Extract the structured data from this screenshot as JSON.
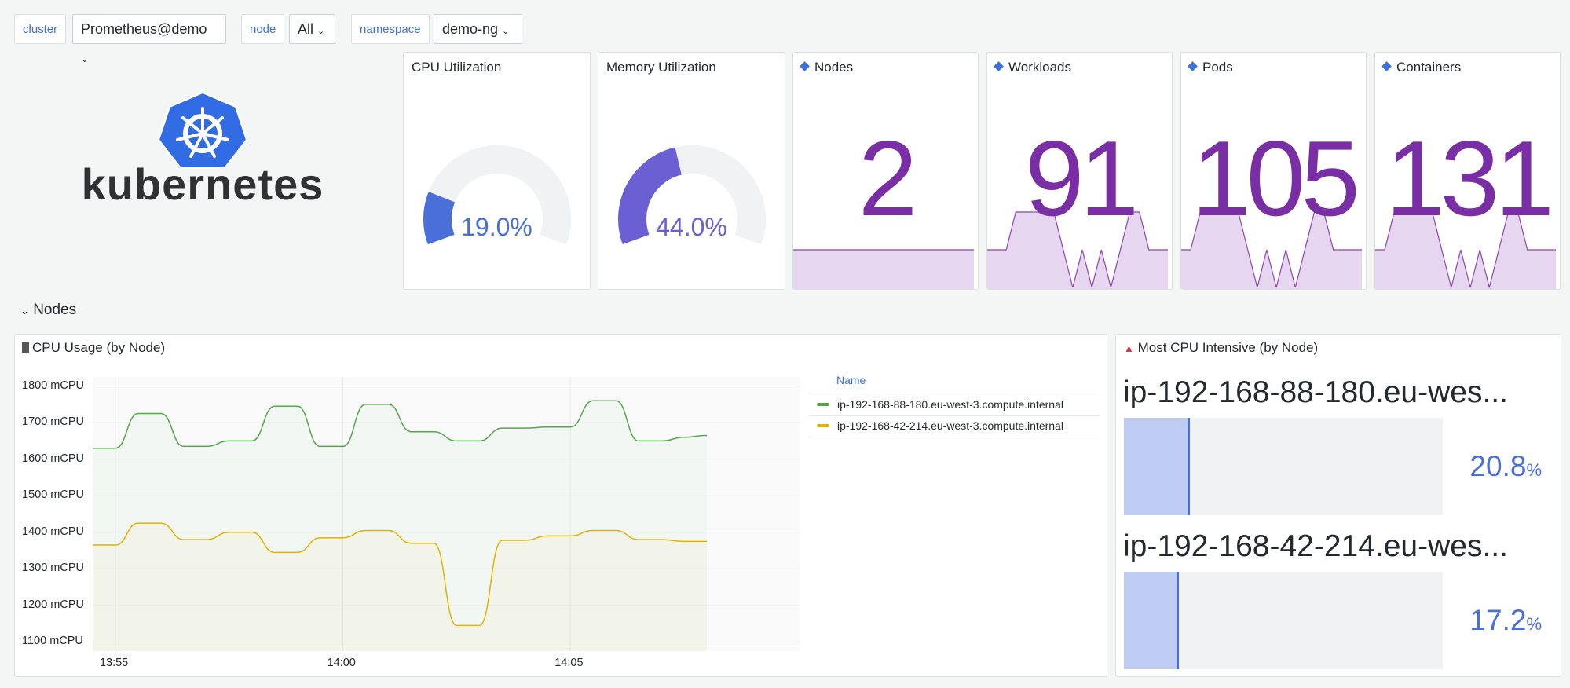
{
  "variables": [
    {
      "label": "cluster",
      "value": "Prometheus@demo"
    },
    {
      "label": "node",
      "value": "All"
    },
    {
      "label": "namespace",
      "value": "demo-ng"
    }
  ],
  "logo": {
    "text": "kubernetes",
    "icon": "kubernetes-helm-wheel"
  },
  "gauges": [
    {
      "title": "CPU Utilization",
      "value": 19.0,
      "display": "19.0%",
      "color": "#4a6fd8"
    },
    {
      "title": "Memory Utilization",
      "value": 44.0,
      "display": "44.0%",
      "color": "#6a5fd3"
    }
  ],
  "stats": [
    {
      "title": "Nodes",
      "value": "2",
      "spark": [
        1,
        1,
        1,
        1,
        1,
        1,
        1,
        1,
        1,
        1,
        1,
        1,
        1,
        1,
        1,
        1,
        1,
        1,
        1,
        1
      ]
    },
    {
      "title": "Workloads",
      "value": "91",
      "spark": [
        1,
        1,
        1,
        3,
        3,
        3,
        3,
        3,
        1,
        0,
        1,
        0,
        1,
        0,
        1,
        3,
        3,
        1,
        1,
        1
      ]
    },
    {
      "title": "Pods",
      "value": "105",
      "spark": [
        1,
        1,
        3,
        3,
        3,
        3,
        3,
        1,
        0,
        1,
        0,
        1,
        0,
        1,
        3,
        3,
        1,
        1,
        1,
        1
      ]
    },
    {
      "title": "Containers",
      "value": "131",
      "spark": [
        1,
        1,
        3,
        3,
        3,
        3,
        3,
        1,
        0,
        1,
        0,
        1,
        0,
        1,
        3,
        3,
        1,
        1,
        1,
        1
      ]
    }
  ],
  "row": {
    "title": "Nodes"
  },
  "cpu_panel": {
    "title": "CPU Usage (by Node)",
    "legend_header": "Name"
  },
  "top_panel": {
    "title": "Most CPU Intensive (by Node)",
    "bars": [
      {
        "name": "ip-192-168-88-180.eu-wes...",
        "value": 20.8,
        "display": "20.8",
        "unit": "%"
      },
      {
        "name": "ip-192-168-42-214.eu-wes...",
        "value": 17.2,
        "display": "17.2",
        "unit": "%"
      }
    ]
  },
  "chart_data": {
    "type": "line",
    "title": "CPU Usage (by Node)",
    "xlabel": "",
    "ylabel": "",
    "ylim": [
      1075,
      1825
    ],
    "ytick_values": [
      1800,
      1700,
      1600,
      1500,
      1400,
      1300,
      1200,
      1100
    ],
    "yticks": [
      "1800 mCPU",
      "1700 mCPU",
      "1600 mCPU",
      "1500 mCPU",
      "1400 mCPU",
      "1300 mCPU",
      "1200 mCPU",
      "1100 mCPU"
    ],
    "xticks": [
      "13:55",
      "14:00",
      "14:05"
    ],
    "x_minutes": [
      0,
      0.5,
      1,
      1.5,
      2,
      2.5,
      3,
      3.5,
      4,
      4.5,
      5,
      5.5,
      6,
      6.5,
      7,
      7.5,
      8,
      8.5,
      9,
      9.5,
      10,
      10.5,
      11,
      11.5,
      12,
      12.5,
      13,
      13.5
    ],
    "xtick_minutes": [
      0.5,
      5.5,
      10.5
    ],
    "series": [
      {
        "name": "ip-192-168-88-180.eu-west-3.compute.internal",
        "color": "#56a64b",
        "values": [
          1630,
          1630,
          1725,
          1725,
          1635,
          1635,
          1650,
          1650,
          1745,
          1745,
          1635,
          1635,
          1750,
          1750,
          1675,
          1675,
          1650,
          1650,
          1685,
          1685,
          1688,
          1688,
          1760,
          1760,
          1650,
          1650,
          1660,
          1665
        ]
      },
      {
        "name": "ip-192-168-42-214.eu-west-3.compute.internal",
        "color": "#e0b400",
        "values": [
          1365,
          1365,
          1425,
          1425,
          1380,
          1380,
          1400,
          1400,
          1345,
          1345,
          1385,
          1385,
          1405,
          1405,
          1370,
          1370,
          1145,
          1145,
          1378,
          1378,
          1390,
          1390,
          1405,
          1405,
          1380,
          1380,
          1375,
          1375
        ]
      }
    ]
  }
}
